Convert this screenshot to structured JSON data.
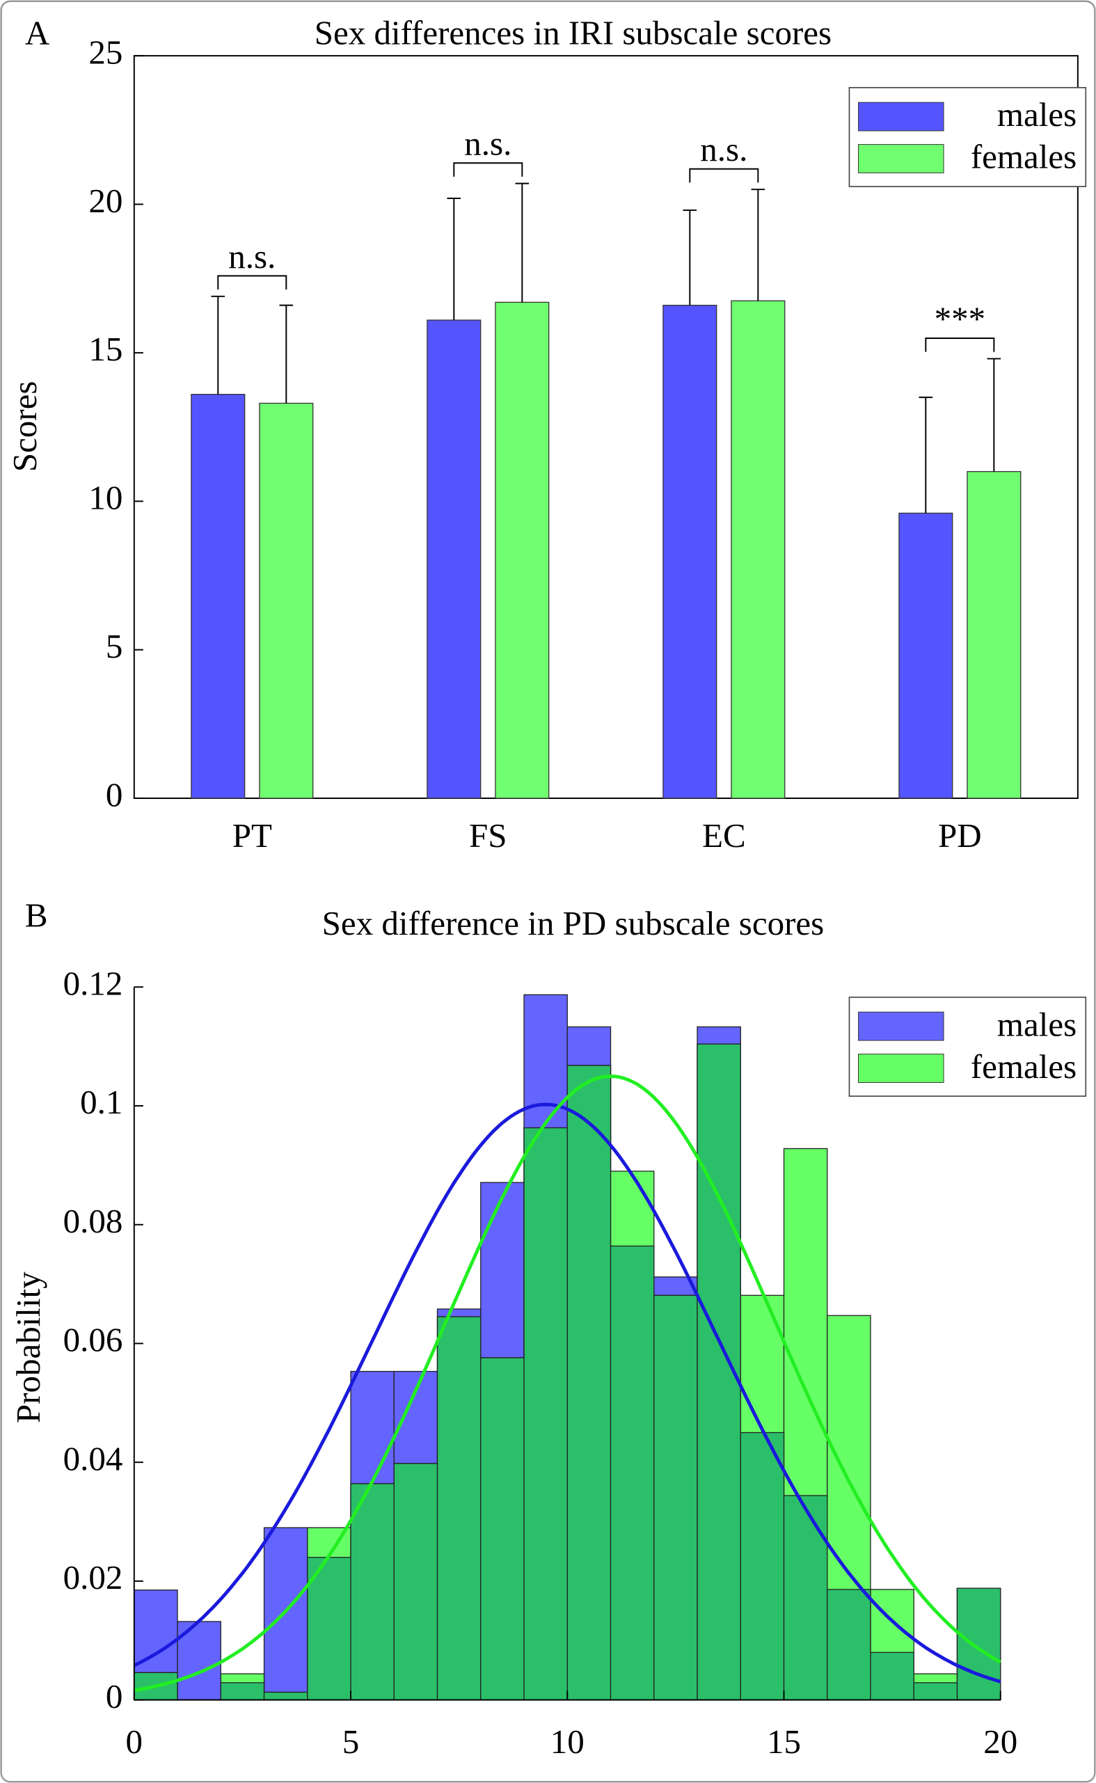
{
  "chart_data": [
    {
      "type": "bar",
      "panel": "A",
      "title": "Sex differences in IRI subscale scores",
      "y_label": "Scores",
      "categories": [
        "PT",
        "FS",
        "EC",
        "PD"
      ],
      "series": [
        {
          "name": "males",
          "color": "#5555ff",
          "values": [
            13.6,
            16.1,
            16.6,
            9.6
          ],
          "errors": [
            3.3,
            4.1,
            3.2,
            3.9
          ]
        },
        {
          "name": "females",
          "color": "#70ff70",
          "values": [
            13.3,
            16.7,
            16.75,
            11.0
          ],
          "errors": [
            3.3,
            4.0,
            3.75,
            3.8
          ]
        }
      ],
      "annotations": [
        "n.s.",
        "n.s.",
        "n.s.",
        "***"
      ],
      "ylim": [
        0,
        25
      ],
      "yticks": [
        0,
        5,
        10,
        15,
        20,
        25
      ],
      "legend": "top-right"
    },
    {
      "type": "histogram",
      "panel": "B",
      "title": "Sex difference in PD subscale scores",
      "y_label": "Probability",
      "bins": [
        0,
        1,
        2,
        3,
        4,
        5,
        6,
        7,
        8,
        9,
        10,
        11,
        12,
        13,
        14,
        15,
        16,
        17,
        18,
        19,
        20
      ],
      "series": [
        {
          "name": "males",
          "color": "#6464ff",
          "line_color": "#1a1adc",
          "fit_mean": 9.5,
          "fit_sd": 3.98,
          "values": [
            0.0185,
            0.0132,
            0.0029,
            0.029,
            0.024,
            0.0553,
            0.0553,
            0.0658,
            0.0871,
            0.1187,
            0.1133,
            0.0764,
            0.0712,
            0.1133,
            0.045,
            0.0344,
            0.0186,
            0.008,
            0.0029,
            0.0188
          ]
        },
        {
          "name": "females",
          "color": "#66ff66",
          "line_color": "#22ee22",
          "fit_mean": 11.0,
          "fit_sd": 3.8,
          "values": [
            0.0046,
            0,
            0.0044,
            0.0013,
            0.029,
            0.0364,
            0.0398,
            0.0645,
            0.0576,
            0.0963,
            0.1068,
            0.089,
            0.0681,
            0.1104,
            0.0681,
            0.0928,
            0.0647,
            0.0186,
            0.0044,
            0.0188
          ]
        }
      ],
      "overlap_color": "#2bbf6a",
      "xlim": [
        0,
        20
      ],
      "xticks": [
        0,
        5,
        10,
        15,
        20
      ],
      "ylim": [
        0,
        0.12
      ],
      "yticks": [
        0,
        0.02,
        0.04,
        0.06,
        0.08,
        0.1,
        0.12
      ],
      "legend": "top-right"
    }
  ]
}
